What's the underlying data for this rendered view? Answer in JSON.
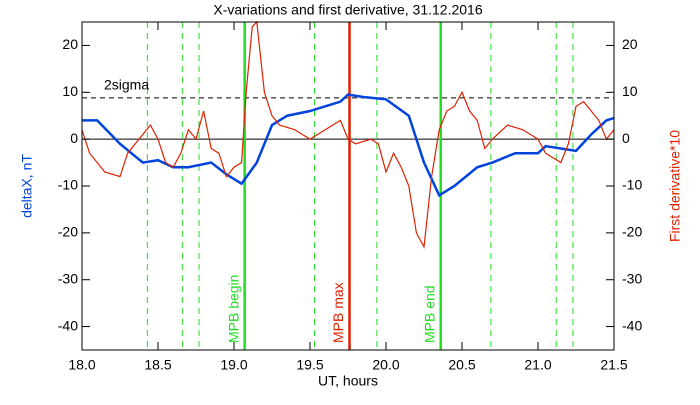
{
  "chart_data": {
    "type": "line",
    "title": "X-variations and first derivative, 31.12.2016",
    "xlabel": "UT, hours",
    "ylabel": "deltaX, nT",
    "y2label": "First derivative*10",
    "xlim": [
      18,
      21.5
    ],
    "xticks": [
      {
        "value": 18,
        "label": "18.0"
      },
      18.5,
      {
        "value": 19,
        "label": "19.0"
      },
      19.5,
      {
        "value": 20,
        "label": "20.0"
      },
      20.5,
      {
        "value": 21,
        "label": "21.0"
      },
      21.5
    ],
    "ylim": [
      -45,
      25
    ],
    "yticks": [
      -40,
      -30,
      -20,
      -10,
      0,
      10,
      20
    ],
    "y2lim": [
      -45,
      25
    ],
    "y2ticks": [
      -40,
      -30,
      -20,
      -10,
      0,
      10,
      20
    ],
    "series": [
      {
        "name": "deltaX, nT",
        "color": "#0044dd",
        "axis": "y",
        "x": [
          18.0,
          18.1,
          18.25,
          18.4,
          18.5,
          18.6,
          18.7,
          18.85,
          18.95,
          19.05,
          19.15,
          19.25,
          19.35,
          19.5,
          19.6,
          19.7,
          19.75,
          19.85,
          20.0,
          20.15,
          20.25,
          20.35,
          20.45,
          20.6,
          20.7,
          20.85,
          21.0,
          21.05,
          21.15,
          21.25,
          21.35,
          21.45,
          21.5
        ],
        "values": [
          4,
          4,
          -1,
          -5,
          -4.5,
          -6,
          -6,
          -5,
          -7.5,
          -9.5,
          -5,
          3,
          5,
          6,
          7,
          8,
          9.5,
          9,
          8.5,
          5,
          -5,
          -12,
          -10,
          -6,
          -5,
          -3,
          -3,
          -1.5,
          -2,
          -2.5,
          1,
          4,
          4.5
        ]
      },
      {
        "name": "First derivative*10",
        "color": "#dd2200",
        "axis": "y2",
        "x": [
          18.0,
          18.05,
          18.15,
          18.25,
          18.3,
          18.4,
          18.45,
          18.5,
          18.55,
          18.6,
          18.65,
          18.7,
          18.75,
          18.8,
          18.85,
          18.9,
          18.95,
          19.0,
          19.05,
          19.08,
          19.12,
          19.15,
          19.2,
          19.25,
          19.3,
          19.4,
          19.5,
          19.6,
          19.7,
          19.75,
          19.8,
          19.9,
          19.95,
          20.0,
          20.05,
          20.1,
          20.15,
          20.2,
          20.25,
          20.3,
          20.35,
          20.4,
          20.45,
          20.5,
          20.55,
          20.6,
          20.65,
          20.7,
          20.8,
          20.9,
          21.0,
          21.05,
          21.1,
          21.15,
          21.2,
          21.25,
          21.3,
          21.35,
          21.4,
          21.45,
          21.5
        ],
        "values": [
          2,
          -3,
          -7,
          -8,
          -3,
          1,
          3,
          0,
          -5,
          -6,
          -3,
          2,
          0,
          6,
          -2,
          -3,
          -8,
          -6,
          -5,
          10,
          24,
          25,
          10,
          5,
          3,
          2,
          0,
          2,
          4,
          0,
          -1,
          0,
          -1,
          -7,
          -3,
          -6,
          -10,
          -20,
          -23,
          -8,
          2,
          6,
          7,
          10,
          6,
          4,
          -2,
          0,
          3,
          2,
          0,
          -3,
          -4,
          -5,
          -1,
          7,
          8,
          6,
          4,
          0,
          2
        ]
      }
    ],
    "threshold": {
      "value": 8.8,
      "label": "2sigma"
    },
    "dashed_lines": [
      18.43,
      18.66,
      18.77,
      19.53,
      19.94,
      20.69,
      21.12,
      21.23
    ],
    "dashed_color": "#22dd22",
    "markers": [
      {
        "x": 19.07,
        "label": "MPB begin",
        "color": "#22dd22"
      },
      {
        "x": 19.76,
        "label": "MPB max",
        "color": "#dd2200"
      },
      {
        "x": 20.36,
        "label": "MPB end",
        "color": "#22dd22"
      }
    ]
  }
}
